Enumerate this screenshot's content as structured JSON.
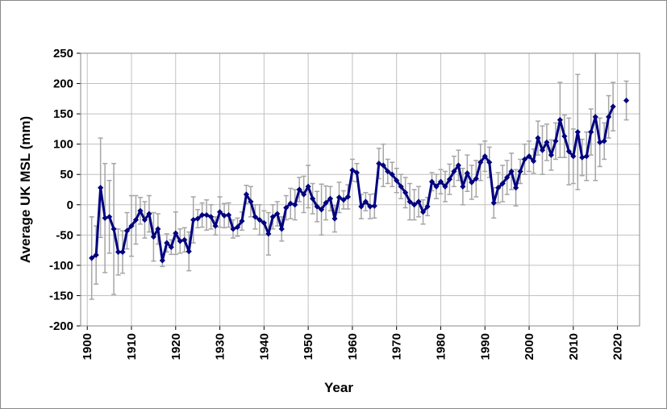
{
  "chart_data": {
    "type": "line",
    "xlabel": "Year",
    "ylabel": "Average UK MSL (mm)",
    "x": [
      1901,
      1902,
      1903,
      1904,
      1905,
      1906,
      1907,
      1908,
      1909,
      1910,
      1911,
      1912,
      1913,
      1914,
      1915,
      1916,
      1917,
      1918,
      1919,
      1920,
      1921,
      1922,
      1923,
      1924,
      1925,
      1926,
      1927,
      1928,
      1929,
      1930,
      1931,
      1932,
      1933,
      1934,
      1935,
      1936,
      1937,
      1938,
      1939,
      1940,
      1941,
      1942,
      1943,
      1944,
      1945,
      1946,
      1947,
      1948,
      1949,
      1950,
      1951,
      1952,
      1953,
      1954,
      1955,
      1956,
      1957,
      1958,
      1959,
      1960,
      1961,
      1962,
      1963,
      1964,
      1965,
      1966,
      1967,
      1968,
      1969,
      1970,
      1971,
      1972,
      1973,
      1974,
      1975,
      1976,
      1977,
      1978,
      1979,
      1980,
      1981,
      1982,
      1983,
      1984,
      1985,
      1986,
      1987,
      1988,
      1989,
      1990,
      1991,
      1992,
      1993,
      1994,
      1995,
      1996,
      1997,
      1998,
      1999,
      2000,
      2001,
      2002,
      2003,
      2004,
      2005,
      2006,
      2007,
      2008,
      2009,
      2010,
      2011,
      2012,
      2013,
      2014,
      2015,
      2016,
      2017,
      2018,
      2019,
      2020,
      2021,
      2022
    ],
    "series": [
      {
        "name": "Average UK MSL",
        "color": "#000080",
        "error_color": "#a6a6a6",
        "values": [
          -88,
          -83,
          28,
          -22,
          -20,
          -40,
          -78,
          -78,
          -43,
          -35,
          -25,
          -10,
          -25,
          -15,
          -53,
          -40,
          -92,
          -63,
          -70,
          -47,
          -60,
          -58,
          -77,
          -25,
          -23,
          -17,
          -17,
          -20,
          -35,
          -12,
          -18,
          -17,
          -40,
          -37,
          -27,
          17,
          5,
          -20,
          -25,
          -30,
          -48,
          -20,
          -15,
          -40,
          -5,
          2,
          0,
          25,
          17,
          30,
          10,
          -3,
          -8,
          3,
          10,
          -23,
          12,
          8,
          13,
          57,
          53,
          -3,
          5,
          -3,
          -2,
          68,
          65,
          55,
          50,
          40,
          30,
          20,
          5,
          0,
          5,
          -12,
          -3,
          38,
          30,
          38,
          30,
          42,
          55,
          65,
          30,
          52,
          37,
          43,
          70,
          80,
          70,
          3,
          28,
          35,
          45,
          55,
          28,
          55,
          75,
          80,
          72,
          110,
          90,
          103,
          82,
          105,
          140,
          113,
          88,
          80,
          120,
          78,
          80,
          120,
          145,
          103,
          105,
          145,
          162,
          null,
          null,
          172
        ],
        "errors": [
          68,
          48,
          82,
          90,
          60,
          108,
          38,
          35,
          30,
          50,
          40,
          22,
          30,
          30,
          40,
          25,
          10,
          15,
          12,
          35,
          20,
          20,
          32,
          38,
          15,
          20,
          25,
          20,
          15,
          25,
          20,
          20,
          15,
          15,
          15,
          15,
          25,
          20,
          25,
          20,
          35,
          20,
          20,
          20,
          20,
          25,
          25,
          20,
          30,
          35,
          25,
          25,
          42,
          28,
          20,
          22,
          25,
          15,
          20,
          18,
          15,
          20,
          15,
          20,
          20,
          25,
          35,
          20,
          20,
          20,
          20,
          25,
          30,
          25,
          25,
          20,
          15,
          15,
          20,
          20,
          25,
          25,
          25,
          25,
          30,
          30,
          28,
          30,
          30,
          25,
          25,
          25,
          25,
          30,
          28,
          30,
          30,
          20,
          25,
          25,
          20,
          28,
          40,
          30,
          25,
          30,
          62,
          35,
          55,
          45,
          95,
          30,
          40,
          38,
          105,
          40,
          30,
          35,
          40,
          null,
          null,
          32
        ]
      }
    ],
    "xlim": [
      1898.5,
      2025
    ],
    "xticks": [
      1900,
      1910,
      1920,
      1930,
      1940,
      1950,
      1960,
      1970,
      1980,
      1990,
      2000,
      2010,
      2020
    ],
    "ylim": [
      -200,
      250
    ],
    "yticks": [
      -200,
      -150,
      -100,
      -50,
      0,
      50,
      100,
      150,
      200,
      250
    ],
    "grid": true
  }
}
